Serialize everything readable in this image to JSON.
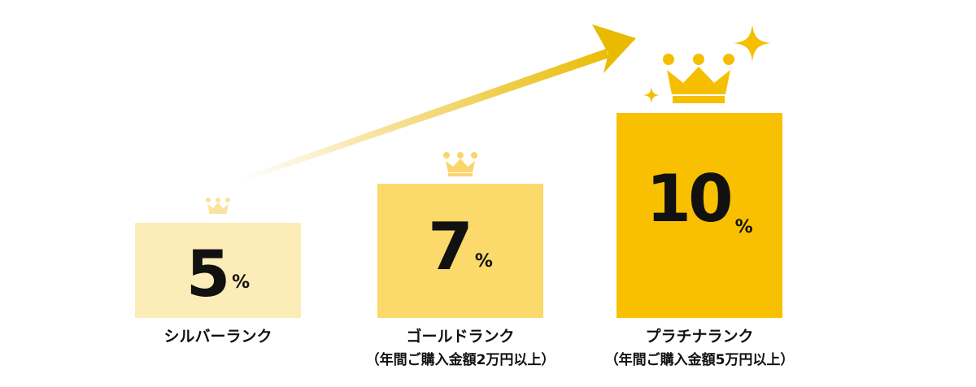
{
  "colors": {
    "silver_box": "#FCECB8",
    "gold_box": "#FBD96A",
    "platinum_box": "#F8C000",
    "silver_crown": "#FAE2A0",
    "gold_crown": "#F9D56B",
    "platinum_crown": "#F5BF00",
    "arrow": "#E8BB00",
    "text": "#111111"
  },
  "ranks": [
    {
      "id": "silver",
      "rate_number": "5",
      "rate_unit": "%",
      "name": "シルバーランク",
      "condition": "",
      "crown_icon": "crown-icon"
    },
    {
      "id": "gold",
      "rate_number": "7",
      "rate_unit": "%",
      "name": "ゴールドランク",
      "condition": "（年間ご購入金額2万円以上）",
      "crown_icon": "crown-icon"
    },
    {
      "id": "platinum",
      "rate_number": "10",
      "rate_unit": "%",
      "name": "プラチナランク",
      "condition": "（年間ご購入金額5万円以上）",
      "crown_icon": "crown-icon",
      "sparkle_icons": [
        "sparkle-icon",
        "sparkle-icon"
      ]
    }
  ],
  "arrow_icon": "up-trend-arrow-icon"
}
